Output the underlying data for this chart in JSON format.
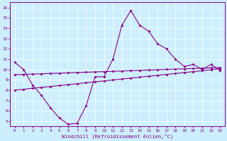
{
  "xlabel": "Windchill (Refroidissement éolien,°C)",
  "hours": [
    0,
    1,
    2,
    3,
    4,
    5,
    6,
    7,
    8,
    9,
    10,
    11,
    12,
    13,
    14,
    15,
    16,
    17,
    18,
    19,
    20,
    21,
    22,
    23
  ],
  "windchill": [
    10.7,
    10.0,
    8.5,
    7.5,
    6.3,
    5.3,
    4.7,
    4.8,
    6.5,
    9.3,
    9.3,
    11.0,
    14.3,
    15.7,
    14.3,
    13.7,
    12.5,
    12.0,
    11.0,
    10.3,
    10.5,
    10.0,
    10.5,
    9.9
  ],
  "trend1": [
    9.5,
    9.53,
    9.56,
    9.59,
    9.62,
    9.65,
    9.68,
    9.71,
    9.74,
    9.77,
    9.8,
    9.83,
    9.86,
    9.89,
    9.92,
    9.95,
    9.98,
    10.01,
    10.04,
    10.07,
    10.1,
    10.13,
    10.16,
    10.19
  ],
  "trend2": [
    8.0,
    8.09,
    8.18,
    8.27,
    8.36,
    8.45,
    8.54,
    8.63,
    8.72,
    8.81,
    8.9,
    8.99,
    9.08,
    9.17,
    9.26,
    9.35,
    9.44,
    9.53,
    9.62,
    9.71,
    9.8,
    9.89,
    9.98,
    10.07
  ],
  "line_color": "#880088",
  "bg_color": "#cceeff",
  "grid_color": "#aaddcc",
  "ylim": [
    4.5,
    16.5
  ],
  "xlim": [
    -0.5,
    23.5
  ],
  "yticks": [
    5,
    6,
    7,
    8,
    9,
    10,
    11,
    12,
    13,
    14,
    15,
    16
  ],
  "xticks": [
    0,
    1,
    2,
    3,
    4,
    5,
    6,
    7,
    8,
    9,
    10,
    11,
    12,
    13,
    14,
    15,
    16,
    17,
    18,
    19,
    20,
    21,
    22,
    23
  ]
}
